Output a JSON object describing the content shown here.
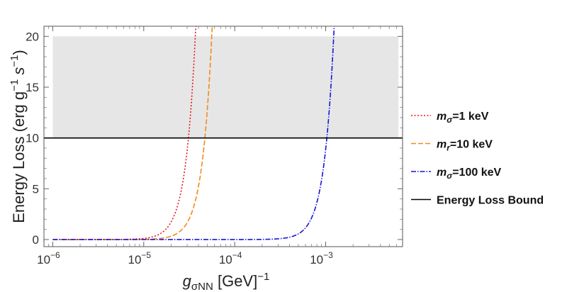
{
  "chart_data": {
    "type": "line",
    "title": "",
    "xscale": "log",
    "xlim": [
      8e-07,
      0.007
    ],
    "ylim": [
      -0.7,
      21
    ],
    "xlabel": {
      "main": "g",
      "sub": "σNN",
      "unit": " [GeV]",
      "sup": "−1"
    },
    "ylabel": {
      "text1": "Energy Loss (erg g",
      "sup1": "−1",
      "text2": "s",
      "sup2": "−1",
      "text3": ")"
    },
    "xticks": [
      {
        "value": 1e-06,
        "base": "10",
        "exp": "−6"
      },
      {
        "value": 1e-05,
        "base": "10",
        "exp": "−5"
      },
      {
        "value": 0.0001,
        "base": "10",
        "exp": "−4"
      },
      {
        "value": 0.001,
        "base": "10",
        "exp": "−3"
      }
    ],
    "yticks": [
      {
        "value": 0,
        "label": "0"
      },
      {
        "value": 5,
        "label": "5"
      },
      {
        "value": 10,
        "label": "10"
      },
      {
        "value": 15,
        "label": "15"
      },
      {
        "value": 20,
        "label": "20"
      }
    ],
    "shaded_region": {
      "x_range": [
        1e-06,
        0.0063
      ],
      "y_range": [
        10,
        20
      ],
      "color": "#e6e6e6"
    },
    "series": [
      {
        "name": "mσ=1 keV",
        "legend_label": {
          "main": "m",
          "sub": "σ",
          "rest": "=1 keV"
        },
        "color": "#e8141a",
        "dash": "2,2.5",
        "model": "power",
        "exponent": 4,
        "crossing": {
          "x": 3.1e-05,
          "y": 10
        }
      },
      {
        "name": "mr=10 keV",
        "legend_label": {
          "main": "m",
          "sub": "r",
          "rest": "=10 keV"
        },
        "color": "#f08a1c",
        "dash": "7,3",
        "model": "power",
        "exponent": 4,
        "crossing": {
          "x": 4.7e-05,
          "y": 10
        }
      },
      {
        "name": "mσ=100 keV",
        "legend_label": {
          "main": "m",
          "sub": "σ",
          "rest": "=100 keV"
        },
        "color": "#1a14d6",
        "dash": "7,2,1.5,2",
        "model": "power",
        "exponent": 4,
        "crossing": {
          "x": 0.00103,
          "y": 10
        }
      }
    ],
    "hlines": [
      {
        "name": "Energy Loss Bound",
        "y": 10,
        "color": "#000000"
      }
    ],
    "legend": {
      "position": "right",
      "entries": [
        {
          "label": {
            "main": "m",
            "sub": "σ",
            "rest": "=1 keV"
          },
          "color": "#e8141a",
          "dash": "2,2.5"
        },
        {
          "label": {
            "main": "m",
            "sub": "r",
            "rest": "=10 keV"
          },
          "color": "#f08a1c",
          "dash": "7,3"
        },
        {
          "label": {
            "main": "m",
            "sub": "σ",
            "rest": "=100 keV"
          },
          "color": "#1a14d6",
          "dash": "7,2,1.5,2"
        },
        {
          "label": {
            "main": "",
            "sub": "",
            "rest": "Energy Loss Bound"
          },
          "color": "#000000",
          "dash": ""
        }
      ]
    }
  }
}
